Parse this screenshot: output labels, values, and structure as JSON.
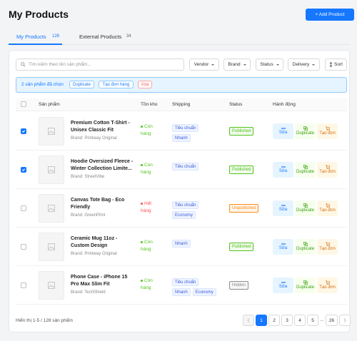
{
  "header": {
    "title": "My Products",
    "add_button": "+ Add Product"
  },
  "tabs": [
    {
      "label": "My Products",
      "count": 128,
      "active": true
    },
    {
      "label": "External Products",
      "count": 34,
      "active": false
    }
  ],
  "toolbar": {
    "search_placeholder": "Tìm kiếm theo tên sản phẩm...",
    "filters": [
      "Vendor",
      "Brand",
      "Status",
      "Delivery"
    ],
    "sort": "Sort"
  },
  "selection_bar": {
    "text": "2 sản phẩm đã chọn",
    "actions": [
      "Duplicate",
      "Tạo đơn hàng",
      "Xóa"
    ]
  },
  "table": {
    "columns": [
      "Sản phẩm",
      "Tồn kho",
      "Shipping",
      "Status",
      "Hành động"
    ],
    "row_actions": [
      "Sửa",
      "Duplicate",
      "Tạo đơn"
    ],
    "rows": [
      {
        "checked": true,
        "name": "Premium Cotton T-Shirt - Unisex Classic Fit",
        "brand": "Brand: Printway Original",
        "stock": "Còn hàng",
        "stock_color": "#52c41a",
        "shipping": [
          "Tiêu chuẩn",
          "Nhanh"
        ],
        "status": "Published",
        "status_color": "#52c41a"
      },
      {
        "checked": true,
        "name": "Hoodie Oversized Fleece - Winter Collection Limite...",
        "brand": "Brand: StreetVibe",
        "stock": "Còn hàng",
        "stock_color": "#52c41a",
        "shipping": [
          "Tiêu chuẩn"
        ],
        "status": "Published",
        "status_color": "#52c41a"
      },
      {
        "checked": false,
        "name": "Canvas Tote Bag - Eco Friendly",
        "brand": "Brand: GreenPrint",
        "stock": "Hết hàng",
        "stock_color": "#ff4d4f",
        "shipping": [
          "Tiêu chuẩn",
          "Economy"
        ],
        "status": "Unpublished",
        "status_color": "#fa8c16"
      },
      {
        "checked": false,
        "name": "Ceramic Mug 11oz - Custom Design",
        "brand": "Brand: Printway Original",
        "stock": "Còn hàng",
        "stock_color": "#52c41a",
        "shipping": [
          "Nhanh"
        ],
        "status": "Published",
        "status_color": "#52c41a"
      },
      {
        "checked": false,
        "name": "Phone Case - iPhone 15 Pro Max Slim Fit",
        "brand": "Brand: TechShield",
        "stock": "Còn hàng",
        "stock_color": "#52c41a",
        "shipping": [
          "Tiêu chuẩn",
          "Nhanh",
          "Economy"
        ],
        "status": "Hidden",
        "status_color": "#8c8c8c"
      }
    ]
  },
  "footer": {
    "summary": "Hiển thị 1-5 / 128 sản phẩm",
    "pages": [
      1,
      2,
      3,
      4,
      5,
      "...",
      26
    ],
    "current_page": 1
  }
}
